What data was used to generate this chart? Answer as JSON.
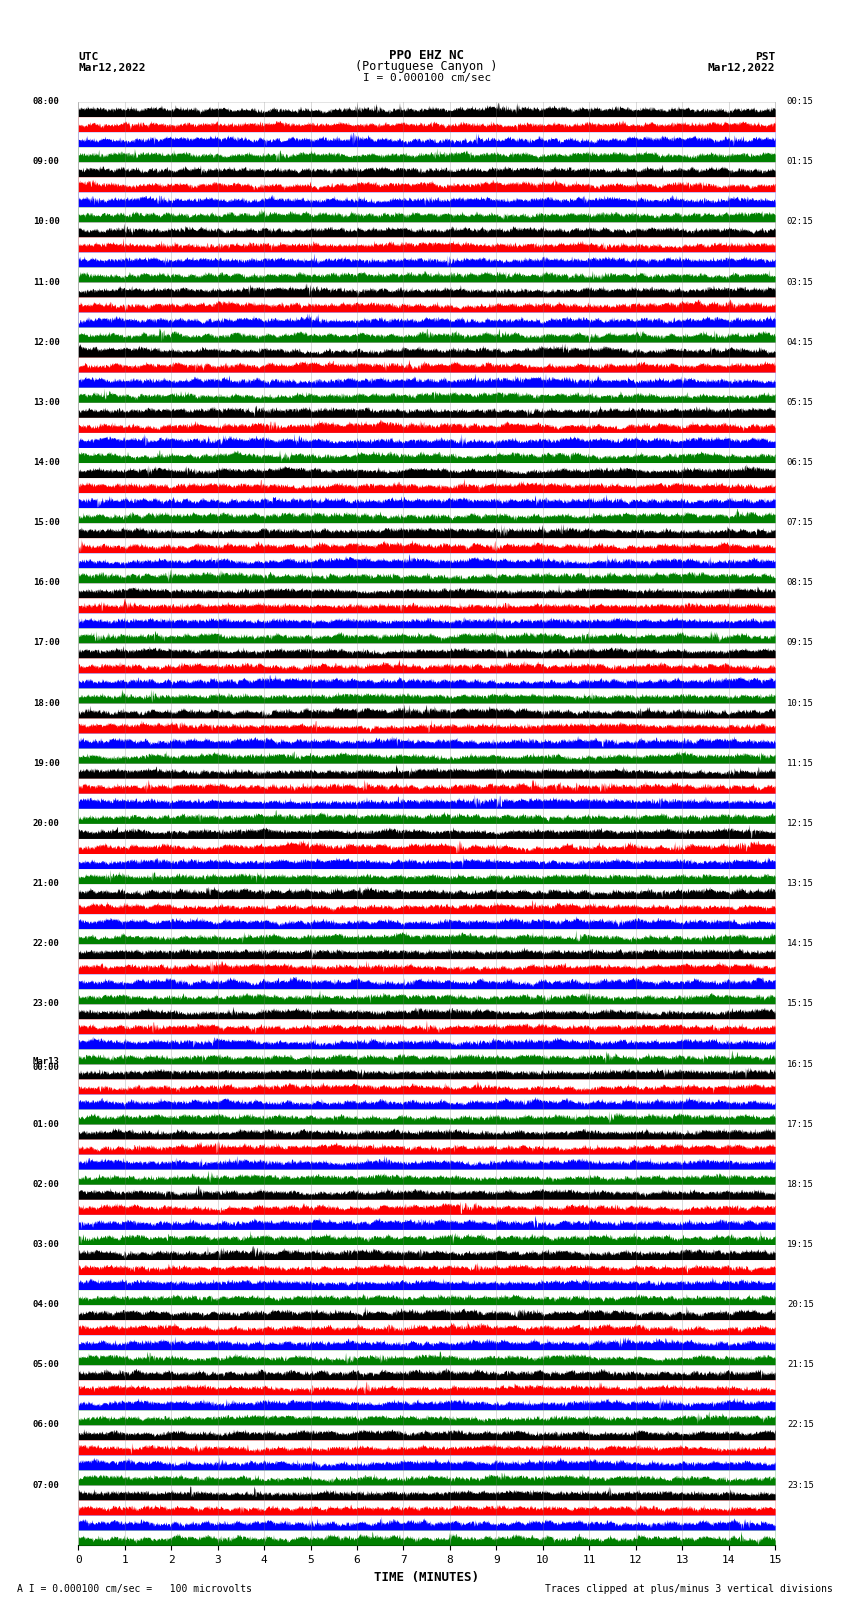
{
  "title_line1": "PPO EHZ NC",
  "title_line2": "(Portuguese Canyon )",
  "title_line3": "I = 0.000100 cm/sec",
  "utc_label": "UTC",
  "utc_date": "Mar12,2022",
  "pst_label": "PST",
  "pst_date": "Mar12,2022",
  "xlabel": "TIME (MINUTES)",
  "footer_left": "A I = 0.000100 cm/sec =   100 microvolts",
  "footer_right": "Traces clipped at plus/minus 3 vertical divisions",
  "left_times": [
    "08:00",
    "09:00",
    "10:00",
    "11:00",
    "12:00",
    "13:00",
    "14:00",
    "15:00",
    "16:00",
    "17:00",
    "18:00",
    "19:00",
    "20:00",
    "21:00",
    "22:00",
    "23:00",
    "Mar13\n00:00",
    "01:00",
    "02:00",
    "03:00",
    "04:00",
    "05:00",
    "06:00",
    "07:00"
  ],
  "right_times": [
    "00:15",
    "01:15",
    "02:15",
    "03:15",
    "04:15",
    "05:15",
    "06:15",
    "07:15",
    "08:15",
    "09:15",
    "10:15",
    "11:15",
    "12:15",
    "13:15",
    "14:15",
    "15:15",
    "16:15",
    "17:15",
    "18:15",
    "19:15",
    "20:15",
    "21:15",
    "22:15",
    "23:15"
  ],
  "colors": [
    "black",
    "red",
    "blue",
    "green"
  ],
  "n_hours": 24,
  "traces_per_hour": 4,
  "minutes": 15,
  "bg_color": "white",
  "seed": 42,
  "n_samples": 1500,
  "noise_base": 0.08,
  "burst_prob": 0.003,
  "burst_amp": 0.4,
  "clip_val": 0.48
}
